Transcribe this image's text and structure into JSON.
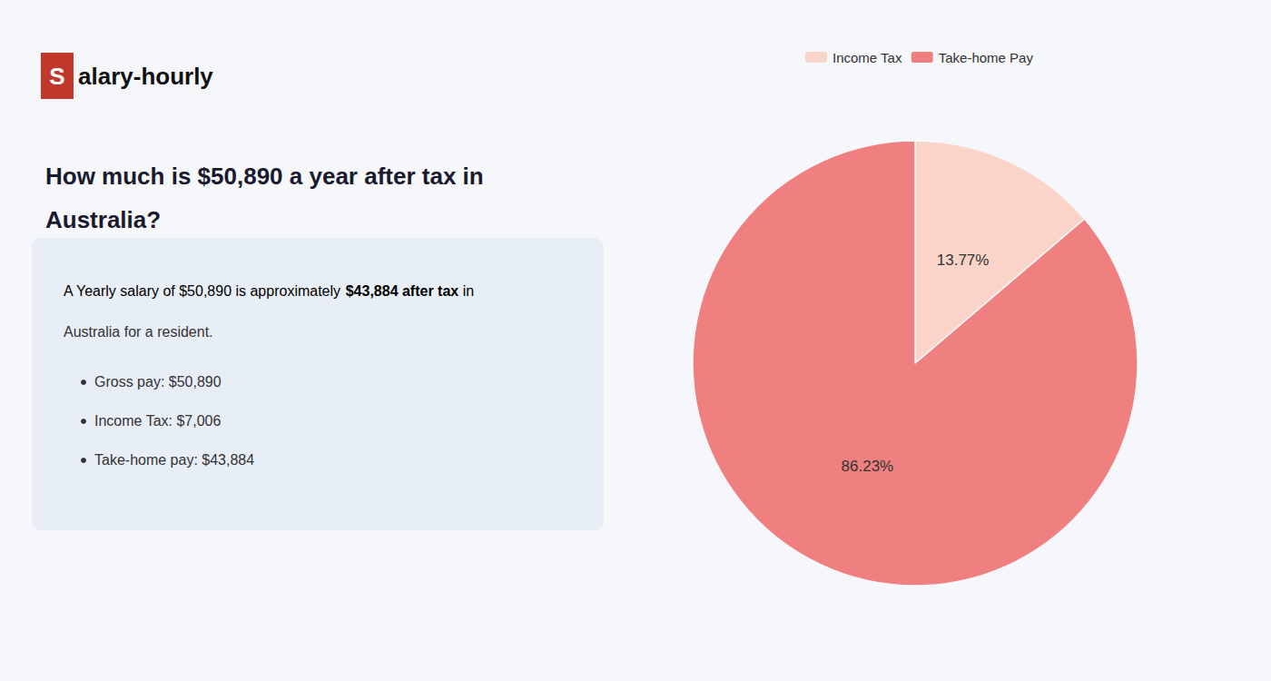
{
  "chart_data": {
    "type": "pie",
    "title": "How much is $50,890 a year after tax in\nAustralia?",
    "categories": [
      "Income Tax",
      "Take-home Pay"
    ],
    "values": [
      13.77,
      86.23
    ],
    "value_labels": [
      "13.77%",
      "86.23%"
    ],
    "colors": [
      "#fad4c8",
      "#f08080"
    ],
    "legend": "top",
    "data_labels": true,
    "annotations": [
      "S",
      "alary-hourly",
      "A Yearly salary of $50,890 is approximately ",
      "$43,884 after tax",
      " in",
      "Australia for a resident.",
      "Gross pay: $50,890",
      "Income Tax: $7,006",
      "Take-home pay: $43,884"
    ]
  }
}
